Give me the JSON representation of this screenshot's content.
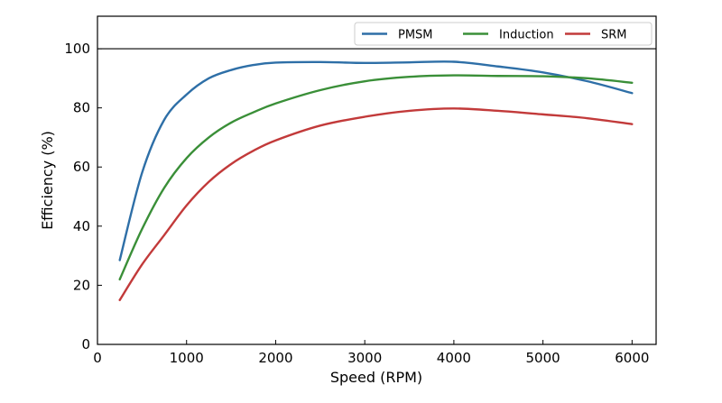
{
  "chart_data": {
    "type": "line",
    "title": "",
    "xlabel": "Speed (RPM)",
    "ylabel": "Efficiency (%)",
    "xlim": [
      0,
      6270
    ],
    "ylim": [
      0,
      111
    ],
    "xticks": [
      0,
      1000,
      2000,
      3000,
      4000,
      5000,
      6000
    ],
    "yticks": [
      0,
      20,
      40,
      60,
      80,
      100
    ],
    "reference_line": 100,
    "grid": false,
    "legend_position": "top-right",
    "x": [
      250,
      500,
      750,
      1000,
      1250,
      1500,
      1750,
      2000,
      2500,
      3000,
      3500,
      4000,
      4500,
      5000,
      5500,
      6000
    ],
    "series": [
      {
        "name": "PMSM",
        "color": "#2e6fa7",
        "values": [
          28.5,
          58,
          76,
          84.5,
          90,
          92.8,
          94.5,
          95.3,
          95.5,
          95.2,
          95.4,
          95.6,
          94,
          92,
          89,
          85
        ]
      },
      {
        "name": "Induction",
        "color": "#3a8f38",
        "values": [
          22,
          39,
          53,
          63,
          70,
          75,
          78.5,
          81.5,
          86,
          89,
          90.5,
          91,
          90.8,
          90.7,
          90,
          88.5
        ]
      },
      {
        "name": "SRM",
        "color": "#c23a3a",
        "values": [
          15,
          27,
          37,
          47,
          55,
          61,
          65.5,
          69,
          74,
          77,
          79,
          79.8,
          79,
          77.8,
          76.5,
          74.5
        ]
      }
    ]
  }
}
